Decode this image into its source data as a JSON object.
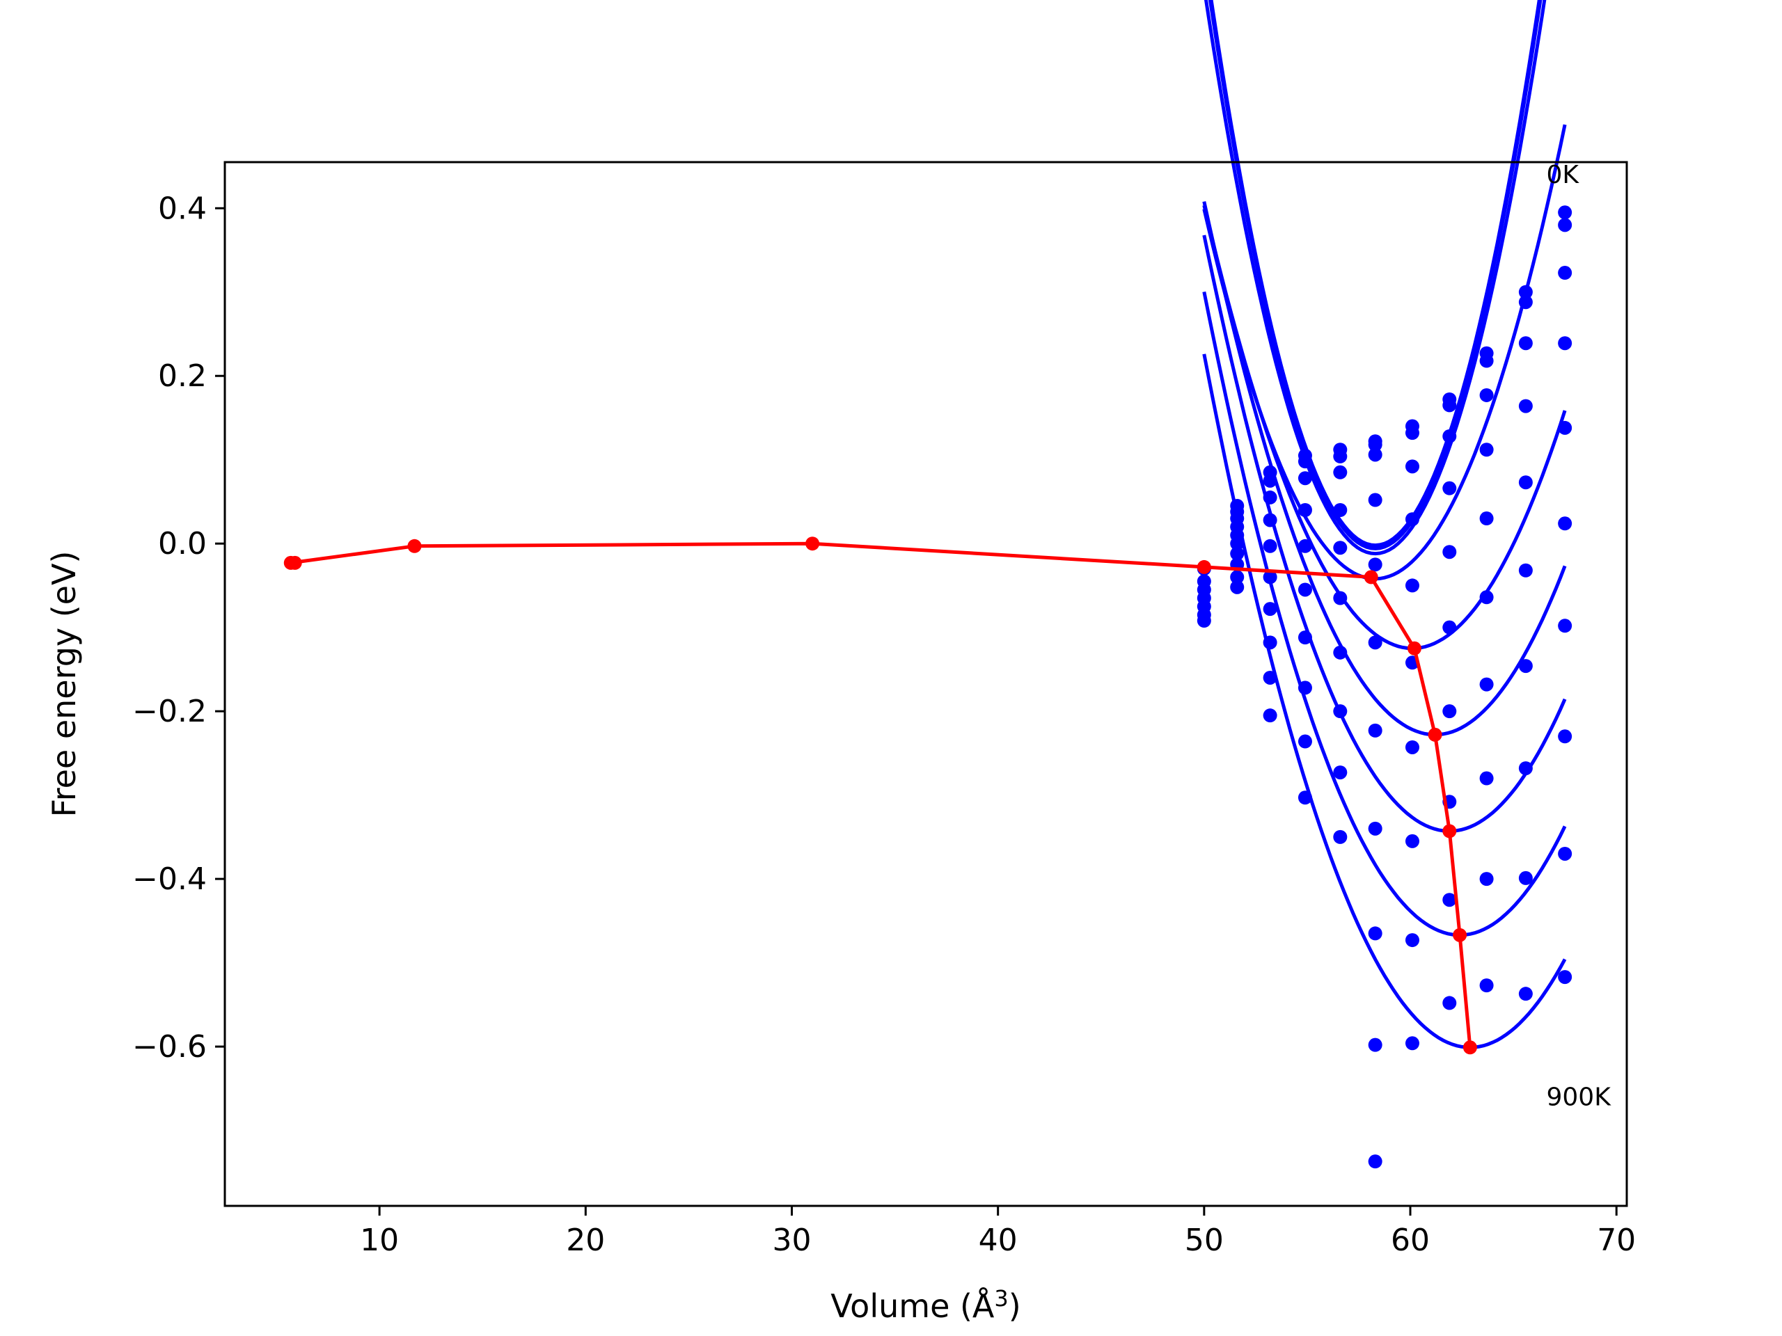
{
  "chart_data": {
    "type": "line",
    "xlabel": "Volume (Å",
    "xlabel_superscript": "3",
    "xlabel_suffix": ")",
    "ylabel": "Free energy (eV)",
    "xlim": [
      2.5,
      70.5
    ],
    "ylim": [
      -0.79,
      0.455
    ],
    "xticks": [
      10,
      20,
      30,
      40,
      50,
      60,
      70
    ],
    "xtick_labels": [
      "10",
      "20",
      "30",
      "40",
      "50",
      "60",
      "70"
    ],
    "yticks": [
      -0.6,
      -0.4,
      -0.2,
      0.0,
      0.2,
      0.4
    ],
    "ytick_labels": [
      "−0.6",
      "−0.4",
      "−0.2",
      "0.0",
      "0.2",
      "0.4"
    ],
    "annotations": [
      {
        "text": "0K",
        "x": 66.6,
        "y": 0.44
      },
      {
        "text": "900K",
        "x": 66.6,
        "y": -0.66
      }
    ],
    "grid": false,
    "legend": "none",
    "colors": {
      "fit_curves": "#0000ff",
      "points": "#0000ff",
      "minimum_line": "#ff0000"
    },
    "volumes": [
      50.0,
      51.6,
      53.2,
      54.9,
      56.6,
      58.3,
      60.1,
      61.9,
      63.7,
      65.6,
      67.5
    ],
    "fit_curves": [
      {
        "v0": 58.3,
        "a": -0.002,
        "c": 0.01028,
        "xstart": 50.0,
        "xend": 67.5
      },
      {
        "v0": 58.3,
        "a": -0.003,
        "c": 0.01024,
        "xstart": 50.0,
        "xend": 67.5
      },
      {
        "v0": 58.3,
        "a": -0.006,
        "c": 0.0102,
        "xstart": 50.0,
        "xend": 67.5
      },
      {
        "v0": 58.3,
        "a": -0.012,
        "c": 0.0098,
        "xstart": 50.0,
        "xend": 67.5
      },
      {
        "v0": 58.3,
        "a": -0.042,
        "c": 0.0064,
        "xstart": 50.0,
        "xend": 67.5
      },
      {
        "v0": 60.1,
        "a": -0.125,
        "c": 0.00518,
        "xstart": 50.0,
        "xend": 67.5
      },
      {
        "v0": 61.2,
        "a": -0.228,
        "c": 0.00507,
        "xstart": 50.0,
        "xend": 67.5
      },
      {
        "v0": 61.9,
        "a": -0.343,
        "c": 0.00502,
        "xstart": 50.0,
        "xend": 67.5
      },
      {
        "v0": 62.4,
        "a": -0.467,
        "c": 0.00499,
        "xstart": 50.0,
        "xend": 67.5
      },
      {
        "v0": 62.9,
        "a": -0.601,
        "c": 0.00497,
        "xstart": 50.0,
        "xend": 67.5
      }
    ],
    "points": [
      {
        "x": 50.0,
        "y": -0.03
      },
      {
        "x": 50.0,
        "y": -0.045
      },
      {
        "x": 50.0,
        "y": -0.055
      },
      {
        "x": 50.0,
        "y": -0.065
      },
      {
        "x": 50.0,
        "y": -0.075
      },
      {
        "x": 50.0,
        "y": -0.085
      },
      {
        "x": 50.0,
        "y": -0.092
      },
      {
        "x": 51.6,
        "y": 0.045
      },
      {
        "x": 51.6,
        "y": 0.038
      },
      {
        "x": 51.6,
        "y": 0.03
      },
      {
        "x": 51.6,
        "y": 0.02
      },
      {
        "x": 51.6,
        "y": 0.01
      },
      {
        "x": 51.6,
        "y": 0.0
      },
      {
        "x": 51.6,
        "y": -0.012
      },
      {
        "x": 51.6,
        "y": -0.025
      },
      {
        "x": 51.6,
        "y": -0.04
      },
      {
        "x": 51.6,
        "y": -0.052
      },
      {
        "x": 53.2,
        "y": 0.085
      },
      {
        "x": 53.2,
        "y": 0.075
      },
      {
        "x": 53.2,
        "y": 0.055
      },
      {
        "x": 53.2,
        "y": 0.028
      },
      {
        "x": 53.2,
        "y": -0.003
      },
      {
        "x": 53.2,
        "y": -0.04
      },
      {
        "x": 53.2,
        "y": -0.078
      },
      {
        "x": 53.2,
        "y": -0.118
      },
      {
        "x": 53.2,
        "y": -0.16
      },
      {
        "x": 53.2,
        "y": -0.205
      },
      {
        "x": 54.9,
        "y": 0.105
      },
      {
        "x": 54.9,
        "y": 0.098
      },
      {
        "x": 54.9,
        "y": 0.078
      },
      {
        "x": 54.9,
        "y": 0.04
      },
      {
        "x": 54.9,
        "y": -0.003
      },
      {
        "x": 54.9,
        "y": -0.055
      },
      {
        "x": 54.9,
        "y": -0.112
      },
      {
        "x": 54.9,
        "y": -0.172
      },
      {
        "x": 54.9,
        "y": -0.236
      },
      {
        "x": 54.9,
        "y": -0.303
      },
      {
        "x": 56.6,
        "y": 0.112
      },
      {
        "x": 56.6,
        "y": 0.104
      },
      {
        "x": 56.6,
        "y": 0.085
      },
      {
        "x": 56.6,
        "y": 0.04
      },
      {
        "x": 56.6,
        "y": -0.005
      },
      {
        "x": 56.6,
        "y": -0.065
      },
      {
        "x": 56.6,
        "y": -0.13
      },
      {
        "x": 56.6,
        "y": -0.2
      },
      {
        "x": 56.6,
        "y": -0.273
      },
      {
        "x": 56.6,
        "y": -0.35
      },
      {
        "x": 58.3,
        "y": 0.122
      },
      {
        "x": 58.3,
        "y": 0.118
      },
      {
        "x": 58.3,
        "y": 0.106
      },
      {
        "x": 58.3,
        "y": 0.052
      },
      {
        "x": 58.3,
        "y": -0.025
      },
      {
        "x": 58.3,
        "y": -0.118
      },
      {
        "x": 58.3,
        "y": -0.223
      },
      {
        "x": 58.3,
        "y": -0.34
      },
      {
        "x": 58.3,
        "y": -0.465
      },
      {
        "x": 58.3,
        "y": -0.598
      },
      {
        "x": 58.3,
        "y": -0.737
      },
      {
        "x": 60.1,
        "y": 0.14
      },
      {
        "x": 60.1,
        "y": 0.132
      },
      {
        "x": 60.1,
        "y": 0.092
      },
      {
        "x": 60.1,
        "y": 0.029
      },
      {
        "x": 60.1,
        "y": -0.05
      },
      {
        "x": 60.1,
        "y": -0.142
      },
      {
        "x": 60.1,
        "y": -0.243
      },
      {
        "x": 60.1,
        "y": -0.355
      },
      {
        "x": 60.1,
        "y": -0.473
      },
      {
        "x": 60.1,
        "y": -0.596
      },
      {
        "x": 61.9,
        "y": 0.172
      },
      {
        "x": 61.9,
        "y": 0.165
      },
      {
        "x": 61.9,
        "y": 0.128
      },
      {
        "x": 61.9,
        "y": 0.066
      },
      {
        "x": 61.9,
        "y": -0.01
      },
      {
        "x": 61.9,
        "y": -0.1
      },
      {
        "x": 61.9,
        "y": -0.2
      },
      {
        "x": 61.9,
        "y": -0.308
      },
      {
        "x": 61.9,
        "y": -0.425
      },
      {
        "x": 61.9,
        "y": -0.548
      },
      {
        "x": 63.7,
        "y": 0.227
      },
      {
        "x": 63.7,
        "y": 0.218
      },
      {
        "x": 63.7,
        "y": 0.177
      },
      {
        "x": 63.7,
        "y": 0.112
      },
      {
        "x": 63.7,
        "y": 0.03
      },
      {
        "x": 63.7,
        "y": -0.064
      },
      {
        "x": 63.7,
        "y": -0.168
      },
      {
        "x": 63.7,
        "y": -0.28
      },
      {
        "x": 63.7,
        "y": -0.4
      },
      {
        "x": 63.7,
        "y": -0.527
      },
      {
        "x": 65.6,
        "y": 0.3
      },
      {
        "x": 65.6,
        "y": 0.288
      },
      {
        "x": 65.6,
        "y": 0.239
      },
      {
        "x": 65.6,
        "y": 0.164
      },
      {
        "x": 65.6,
        "y": 0.073
      },
      {
        "x": 65.6,
        "y": -0.032
      },
      {
        "x": 65.6,
        "y": -0.146
      },
      {
        "x": 65.6,
        "y": -0.268
      },
      {
        "x": 65.6,
        "y": -0.399
      },
      {
        "x": 65.6,
        "y": -0.537
      },
      {
        "x": 67.5,
        "y": 0.395
      },
      {
        "x": 67.5,
        "y": 0.38
      },
      {
        "x": 67.5,
        "y": 0.323
      },
      {
        "x": 67.5,
        "y": 0.239
      },
      {
        "x": 67.5,
        "y": 0.138
      },
      {
        "x": 67.5,
        "y": 0.024
      },
      {
        "x": 67.5,
        "y": -0.098
      },
      {
        "x": 67.5,
        "y": -0.23
      },
      {
        "x": 67.5,
        "y": -0.37
      },
      {
        "x": 67.5,
        "y": -0.517
      }
    ],
    "minimum_path": [
      {
        "x": 5.9,
        "y": -0.023
      },
      {
        "x": 5.7,
        "y": -0.023
      },
      {
        "x": 11.7,
        "y": -0.003
      },
      {
        "x": 31.0,
        "y": 0.0
      },
      {
        "x": 50.0,
        "y": -0.028
      },
      {
        "x": 58.1,
        "y": -0.04
      },
      {
        "x": 60.2,
        "y": -0.125
      },
      {
        "x": 61.2,
        "y": -0.228
      },
      {
        "x": 61.9,
        "y": -0.343
      },
      {
        "x": 62.4,
        "y": -0.467
      },
      {
        "x": 62.9,
        "y": -0.601
      }
    ]
  }
}
